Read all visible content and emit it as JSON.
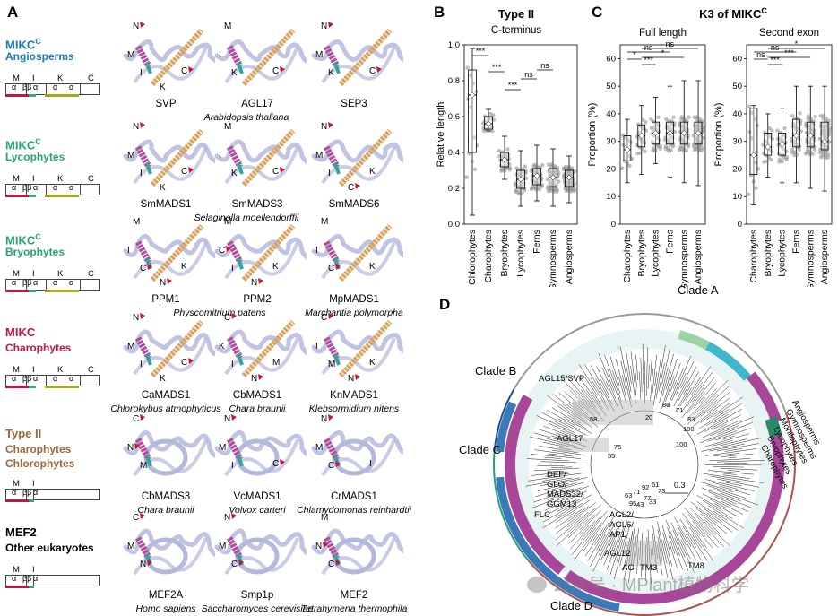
{
  "panel_labels": {
    "a": "A",
    "b": "B",
    "c": "C",
    "d": "D"
  },
  "colors": {
    "blue": "#1f7ab8",
    "teal": "#2aa07a",
    "green": "#2aa07a",
    "red": "#c0183c",
    "brown": "#9a6a3a",
    "black": "#000000",
    "purple": "#a8469a",
    "cyan": "#3fb6cc",
    "lightgreen": "#9bd3a6",
    "darkblue": "#1b4f86",
    "grey": "#9a9a9a",
    "helix_orange": "#d9a25f",
    "helix_pink": "#b04d9c",
    "helix_teal": "#2fa59b",
    "coil": "#b5b8dd"
  },
  "groups": [
    {
      "title": "MIKC",
      "sup": "C",
      "sub": "Angiosperms",
      "title_color": "#1f7ab8",
      "sub_color": "#1f7ab8",
      "domain_letters": [
        "M",
        "I",
        "K",
        "C"
      ],
      "domain_inner": [
        "α",
        "ββ",
        "α",
        "α",
        "α"
      ],
      "proteins": [
        {
          "name": "SVP"
        },
        {
          "name": "AGL17"
        },
        {
          "name": "SEP3"
        }
      ],
      "species": "Arabidopsis thaliana",
      "struct_labels": [
        [
          "N",
          "M",
          "I",
          "C",
          "K"
        ],
        [
          "M",
          "I",
          "K",
          "C"
        ],
        [
          "N",
          "M",
          "K",
          "C"
        ]
      ]
    },
    {
      "title": "MIKC",
      "sup": "C",
      "sub": "Lycophytes",
      "title_color": "#2aa07a",
      "sub_color": "#2aa07a",
      "domain_letters": [
        "M",
        "I",
        "K",
        "C"
      ],
      "domain_inner": [
        "α",
        "ββ",
        "α",
        "α",
        "α"
      ],
      "proteins": [
        {
          "name": "SmMADS1"
        },
        {
          "name": "SmMADS3"
        },
        {
          "name": "SmMADS6"
        }
      ],
      "species": "Selaginella moellendorffii",
      "struct_labels": [
        [
          "N",
          "M",
          "I",
          "C",
          "K"
        ],
        [
          "M",
          "I",
          "K",
          "C"
        ],
        [
          "N",
          "M",
          "I",
          "K",
          "C"
        ]
      ]
    },
    {
      "title": "MIKC",
      "sup": "C",
      "sub": "Bryophytes",
      "title_color": "#2aa07a",
      "sub_color": "#2aa07a",
      "domain_letters": [
        "M",
        "I",
        "K",
        "C"
      ],
      "domain_inner": [
        "α",
        "ββ",
        "α",
        "α",
        "α"
      ],
      "proteins": [
        {
          "name": "PPM1"
        },
        {
          "name": "PPM2"
        },
        {
          "name": "MpMADS1"
        }
      ],
      "species_pair": [
        "Physcomitrium patens",
        "Marchantia polymorpha"
      ],
      "struct_labels": [
        [
          "M",
          "I",
          "C",
          "K",
          "N"
        ],
        [
          "M",
          "C",
          "I",
          "K",
          "N"
        ],
        [
          "M",
          "I",
          "C",
          "K"
        ]
      ]
    },
    {
      "title": "MIKC",
      "sup": "",
      "sub": "Charophytes",
      "title_color": "#c0183c",
      "sub_color": "#c0183c",
      "domain_letters": [
        "M",
        "I",
        "K",
        "C"
      ],
      "domain_inner": [
        "α",
        "ββ",
        "α",
        "α",
        "α"
      ],
      "proteins": [
        {
          "name": "CaMADS1",
          "species": "Chlorokybus atmophyticus"
        },
        {
          "name": "CbMADS1",
          "species": "Chara braunii"
        },
        {
          "name": "KnMADS1",
          "species": "Klebsormidium nitens"
        }
      ],
      "struct_labels": [
        [
          "N",
          "M",
          "I",
          "C",
          "K"
        ],
        [
          "C",
          "K",
          "I",
          "M",
          "N"
        ],
        [
          "C",
          "I",
          "M",
          "K",
          "N"
        ]
      ]
    },
    {
      "title": "Type II",
      "sup": "",
      "sub": "Charophytes",
      "sub2": "Chlorophytes",
      "title_color": "#9a6a3a",
      "sub_color": "#9a6a3a",
      "domain_letters": [
        "M",
        "I"
      ],
      "domain_inner": [
        "α",
        "ββ",
        "α"
      ],
      "proteins": [
        {
          "name": "CbMADS3",
          "species": "Chara braunii"
        },
        {
          "name": "VcMADS1",
          "species": "Volvox carteri"
        },
        {
          "name": "CrMADS1",
          "species": "Chlamydomonas reinhardtii"
        }
      ],
      "struct_labels": [
        [
          "C",
          "N",
          "M"
        ],
        [
          "N",
          "M",
          "I",
          "C"
        ],
        [
          "N",
          "M",
          "C",
          "I"
        ]
      ]
    },
    {
      "title": "MEF2",
      "sup": "",
      "sub": "Other eukaryotes",
      "title_color": "#000000",
      "sub_color": "#000000",
      "domain_letters": [
        "M",
        "I"
      ],
      "domain_inner": [
        "α",
        "ββ",
        "α"
      ],
      "proteins": [
        {
          "name": "MEF2A",
          "species": "Homo sapiens"
        },
        {
          "name": "Smp1p",
          "species": "Saccharomyces cerevisiae"
        },
        {
          "name": "MEF2",
          "species": "Tetrahymena thermophila"
        }
      ],
      "struct_labels": [
        [
          "C",
          "M",
          "N"
        ],
        [
          "N",
          "M",
          "C"
        ],
        [
          "M",
          "N",
          "C"
        ]
      ]
    }
  ],
  "panel_b": {
    "title": "Type II",
    "subtitle": "C-terminus",
    "ylabel": "Relative length",
    "yticks": [
      "0.0",
      "0.2",
      "0.4",
      "0.6",
      "0.8",
      "1.0"
    ],
    "sig": [
      "***",
      "***",
      "***",
      "ns",
      "ns"
    ],
    "chart_data": {
      "type": "box",
      "categories": [
        "Chlorophytes",
        "Charophytes",
        "Bryophytes",
        "Lycophytes",
        "Ferns",
        "Gymnosperms",
        "Angiosperms"
      ],
      "ylim": [
        0,
        1.0
      ],
      "median": [
        0.72,
        0.56,
        0.36,
        0.25,
        0.27,
        0.26,
        0.26
      ],
      "q1": [
        0.4,
        0.53,
        0.32,
        0.2,
        0.22,
        0.21,
        0.21
      ],
      "q3": [
        0.86,
        0.6,
        0.4,
        0.3,
        0.31,
        0.31,
        0.3
      ],
      "min": [
        0.05,
        0.52,
        0.25,
        0.1,
        0.13,
        0.1,
        0.12
      ],
      "max": [
        0.98,
        0.64,
        0.49,
        0.41,
        0.44,
        0.42,
        0.38
      ]
    }
  },
  "panel_c": {
    "title": "K3 of MIKC",
    "title_sup": "C",
    "ylabel": "Proportion (%)",
    "yticks": [
      "0",
      "10",
      "20",
      "30",
      "40",
      "50",
      "60"
    ],
    "left": {
      "subtitle": "Full length",
      "sig": [
        "*",
        "ns",
        "***",
        "*",
        "ns"
      ],
      "chart_data": {
        "type": "box",
        "categories": [
          "Charophytes",
          "Bryophytes",
          "Lycophytes",
          "Ferns",
          "Gymnosperms",
          "Angiosperms"
        ],
        "ylim": [
          0,
          65
        ],
        "median": [
          27,
          32,
          33,
          33,
          33,
          33
        ],
        "q1": [
          23,
          28,
          29,
          29,
          29,
          29
        ],
        "q3": [
          32,
          36,
          37,
          37,
          37,
          37
        ],
        "min": [
          15,
          18,
          22,
          17,
          15,
          14
        ],
        "max": [
          38,
          43,
          46,
          50,
          52,
          52
        ]
      }
    },
    "right": {
      "subtitle": "Second exon",
      "sig": [
        "ns",
        "ns",
        "***",
        "***",
        "*"
      ],
      "chart_data": {
        "type": "box",
        "categories": [
          "Charophytes",
          "Bryophytes",
          "Lycophytes",
          "Ferns",
          "Gymnosperms",
          "Angiosperms"
        ],
        "ylim": [
          0,
          65
        ],
        "median": [
          25,
          28,
          29,
          32,
          32,
          30
        ],
        "q1": [
          18,
          25,
          25,
          28,
          28,
          27
        ],
        "q3": [
          42,
          33,
          33,
          38,
          37,
          37
        ],
        "min": [
          7,
          17,
          15,
          15,
          13,
          12
        ],
        "max": [
          43,
          40,
          42,
          50,
          50,
          50
        ]
      }
    }
  },
  "panel_d": {
    "clades": [
      "Clade A",
      "Clade B",
      "Clade C",
      "Clade D"
    ],
    "legend": [
      "Angiosperms",
      "Gymnosperms",
      "Monilophytes",
      "Lycophytes",
      "Bryophytes",
      "Charophytes"
    ],
    "node_labels": [
      "AGL15/SVP",
      "AGL17",
      "DEF/",
      "GLO/",
      "MADS32/",
      "GGM13",
      "FLC",
      "AGL2/",
      "AGL6/",
      "AP1",
      "AGL12",
      "AG",
      "TM3",
      "TM8"
    ],
    "bootstrap": [
      "86",
      "71",
      "83",
      "100",
      "20",
      "58",
      "75",
      "55",
      "63",
      "71",
      "92",
      "61",
      "73",
      "43",
      "95",
      "77",
      "33",
      "100"
    ],
    "scale": "0.3"
  },
  "watermark": "公众号 · MPlant植物科学"
}
